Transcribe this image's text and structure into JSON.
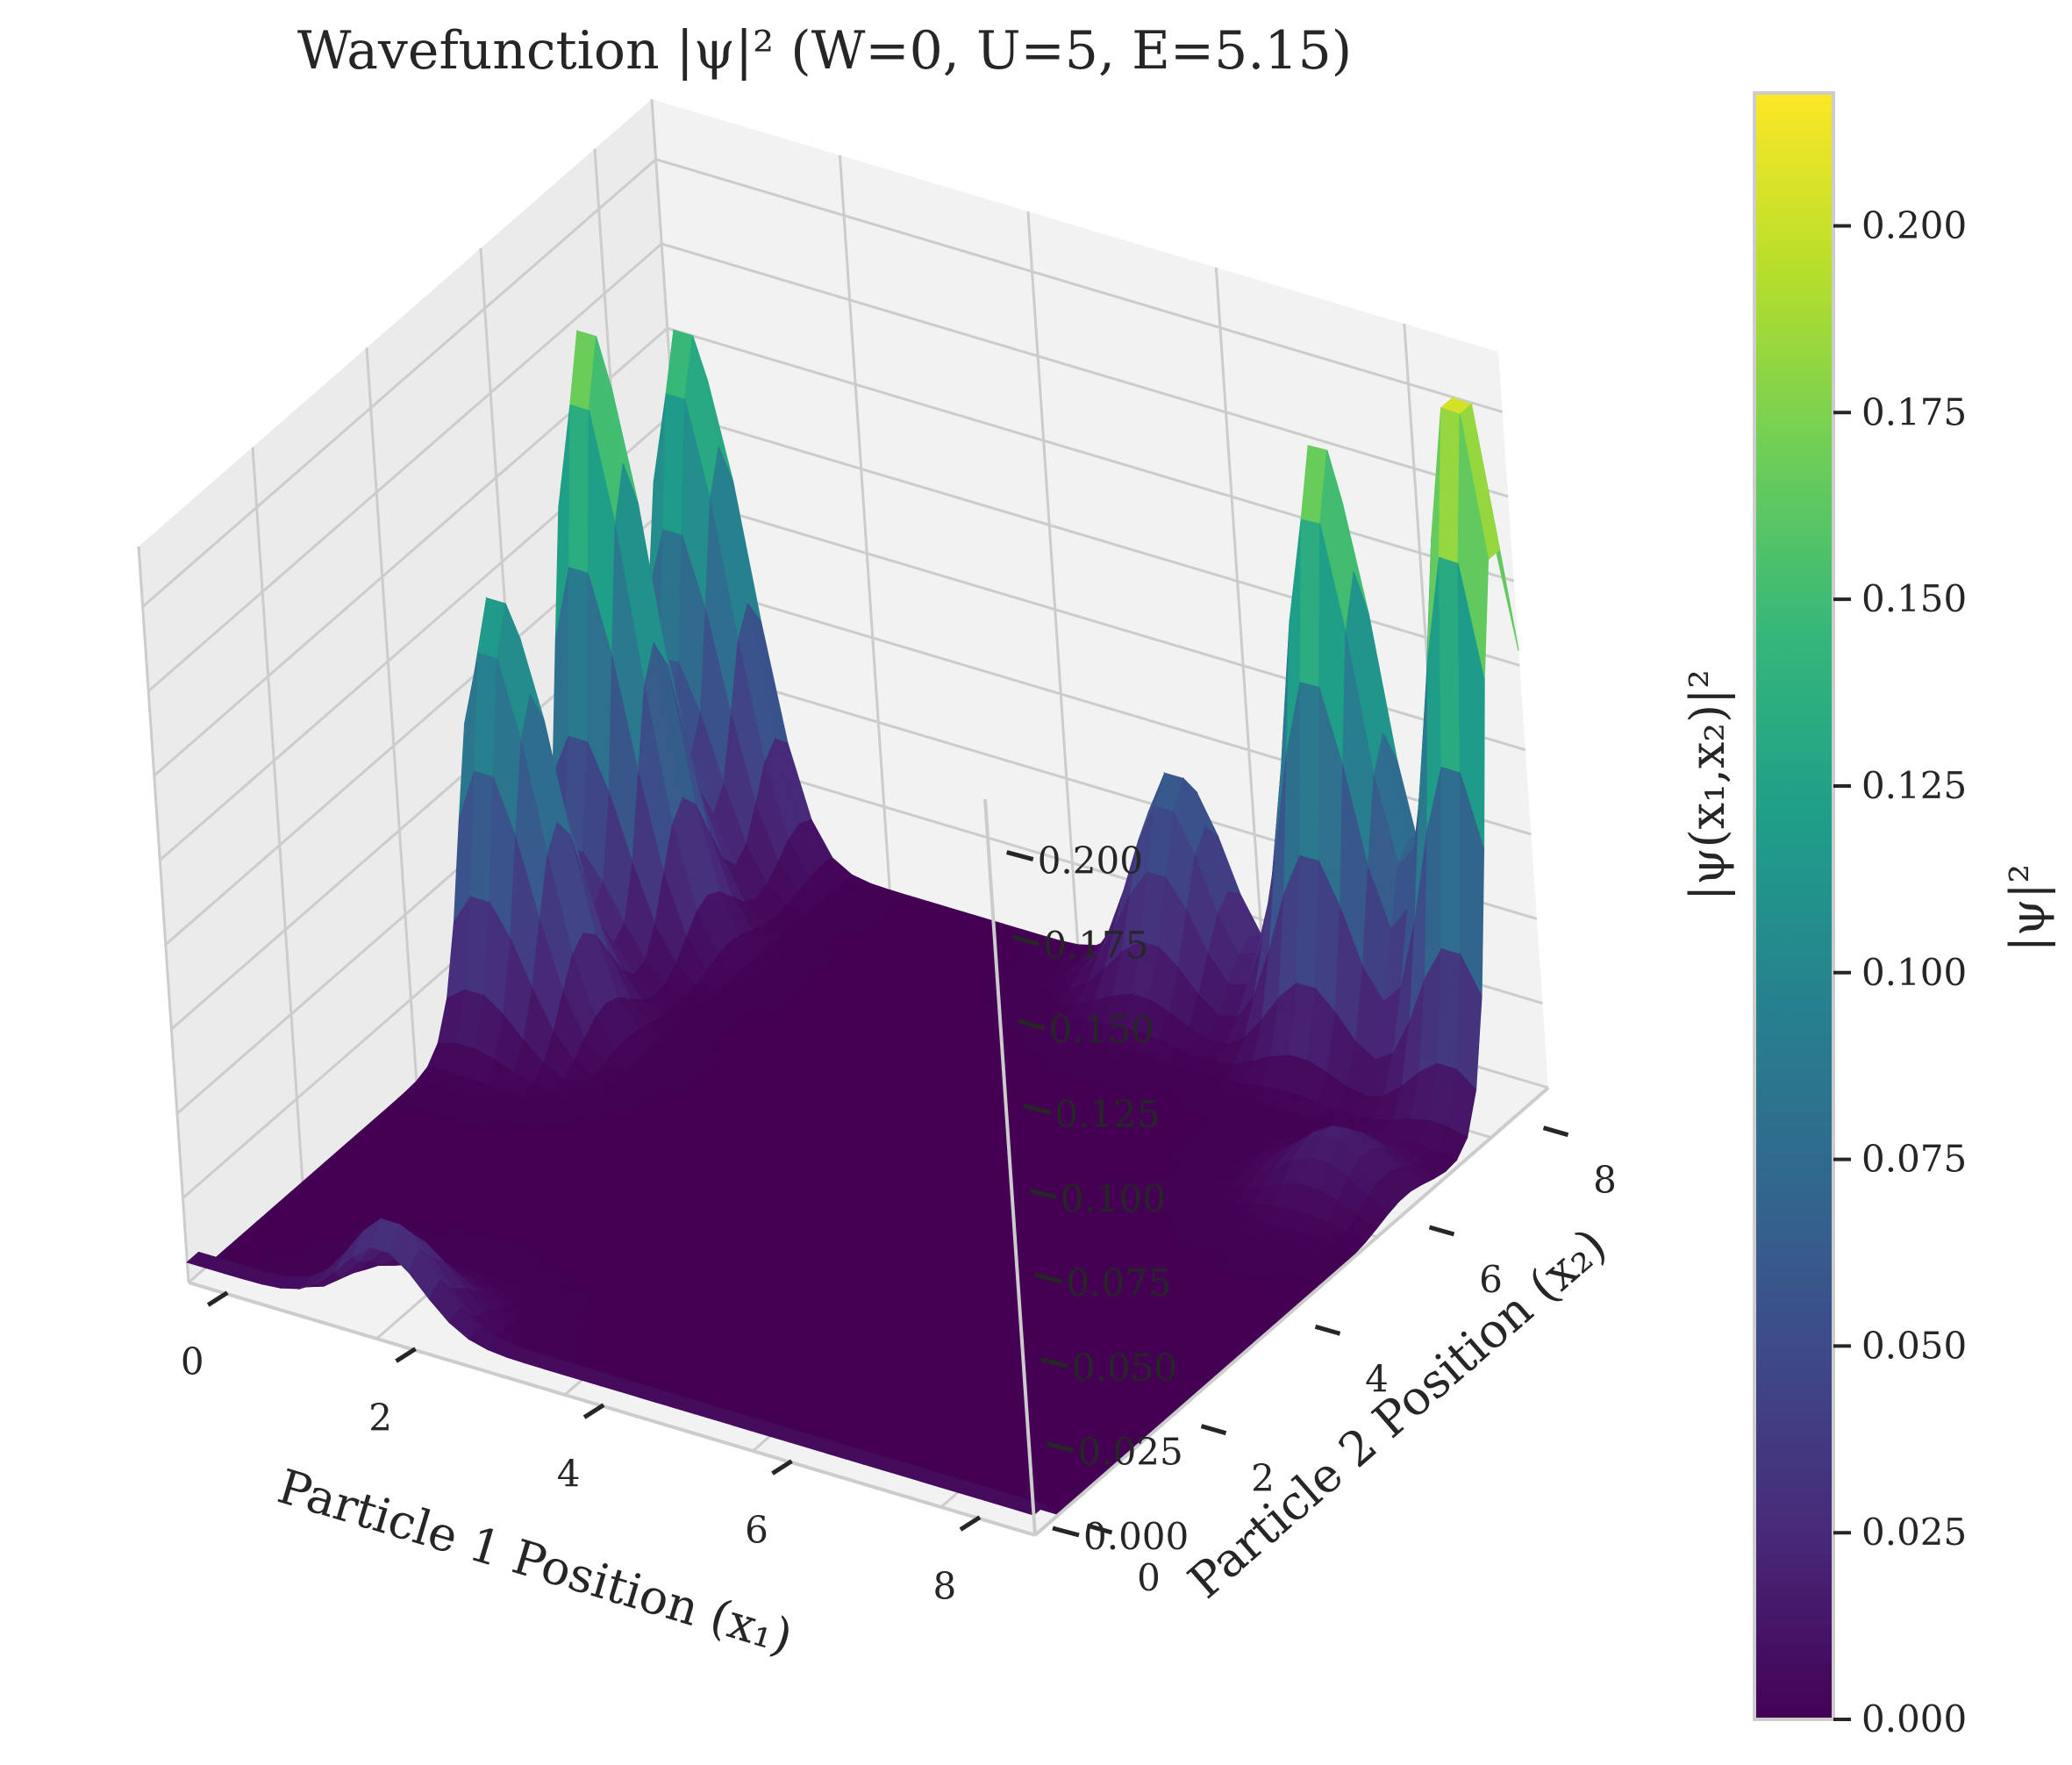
{
  "chart_data": {
    "type": "surface3d",
    "title": "Wavefunction |ψ|² (W=0, U=5, E=5.15)",
    "xlabel": "Particle 1 Position (x₁)",
    "ylabel": "Particle 2 Position (x₂)",
    "zlabel": "|ψ(x₁,x₂)|²",
    "xlim": [
      0,
      9
    ],
    "ylim": [
      0,
      9
    ],
    "zlim": [
      0,
      0.2178
    ],
    "x_ticks": [
      "0",
      "2",
      "4",
      "6",
      "8"
    ],
    "y_ticks": [
      "0",
      "2",
      "4",
      "6",
      "8"
    ],
    "z_ticks": [
      "0.000",
      "0.025",
      "0.050",
      "0.075",
      "0.100",
      "0.125",
      "0.150",
      "0.175",
      "0.200"
    ],
    "colormap": "viridis",
    "grid": true,
    "peaks": [
      {
        "x1": 0.3,
        "x2": 5.4,
        "value": 0.128
      },
      {
        "x1": 0.3,
        "x2": 7.2,
        "value": 0.182
      },
      {
        "x1": 0.3,
        "x2": 8.8,
        "value": 0.158
      },
      {
        "x1": 5.3,
        "x2": 8.8,
        "value": 0.066
      },
      {
        "x1": 7.1,
        "x2": 8.8,
        "value": 0.181
      },
      {
        "x1": 8.7,
        "x2": 8.7,
        "value": 0.215
      },
      {
        "x1": 2.1,
        "x2": 0.3,
        "value": 0.028
      },
      {
        "x1": 8.3,
        "x2": 6.5,
        "value": 0.018
      }
    ],
    "colorbar": {
      "label": "|ψ|²",
      "ticks": [
        "0.000",
        "0.025",
        "0.050",
        "0.075",
        "0.100",
        "0.125",
        "0.150",
        "0.175",
        "0.200"
      ],
      "tick_values": [
        0,
        0.025,
        0.05,
        0.075,
        0.1,
        0.125,
        0.15,
        0.175,
        0.2
      ],
      "range": [
        0,
        0.2178
      ]
    }
  },
  "colors": {
    "pane": "#f2f2f2",
    "pane_side": "#ebebeb",
    "grid": "#cccccc",
    "viridis": [
      "#440154",
      "#482878",
      "#3e4989",
      "#31688e",
      "#26828e",
      "#1f9e89",
      "#35b779",
      "#6ece58",
      "#b5de2b",
      "#fde725"
    ]
  }
}
